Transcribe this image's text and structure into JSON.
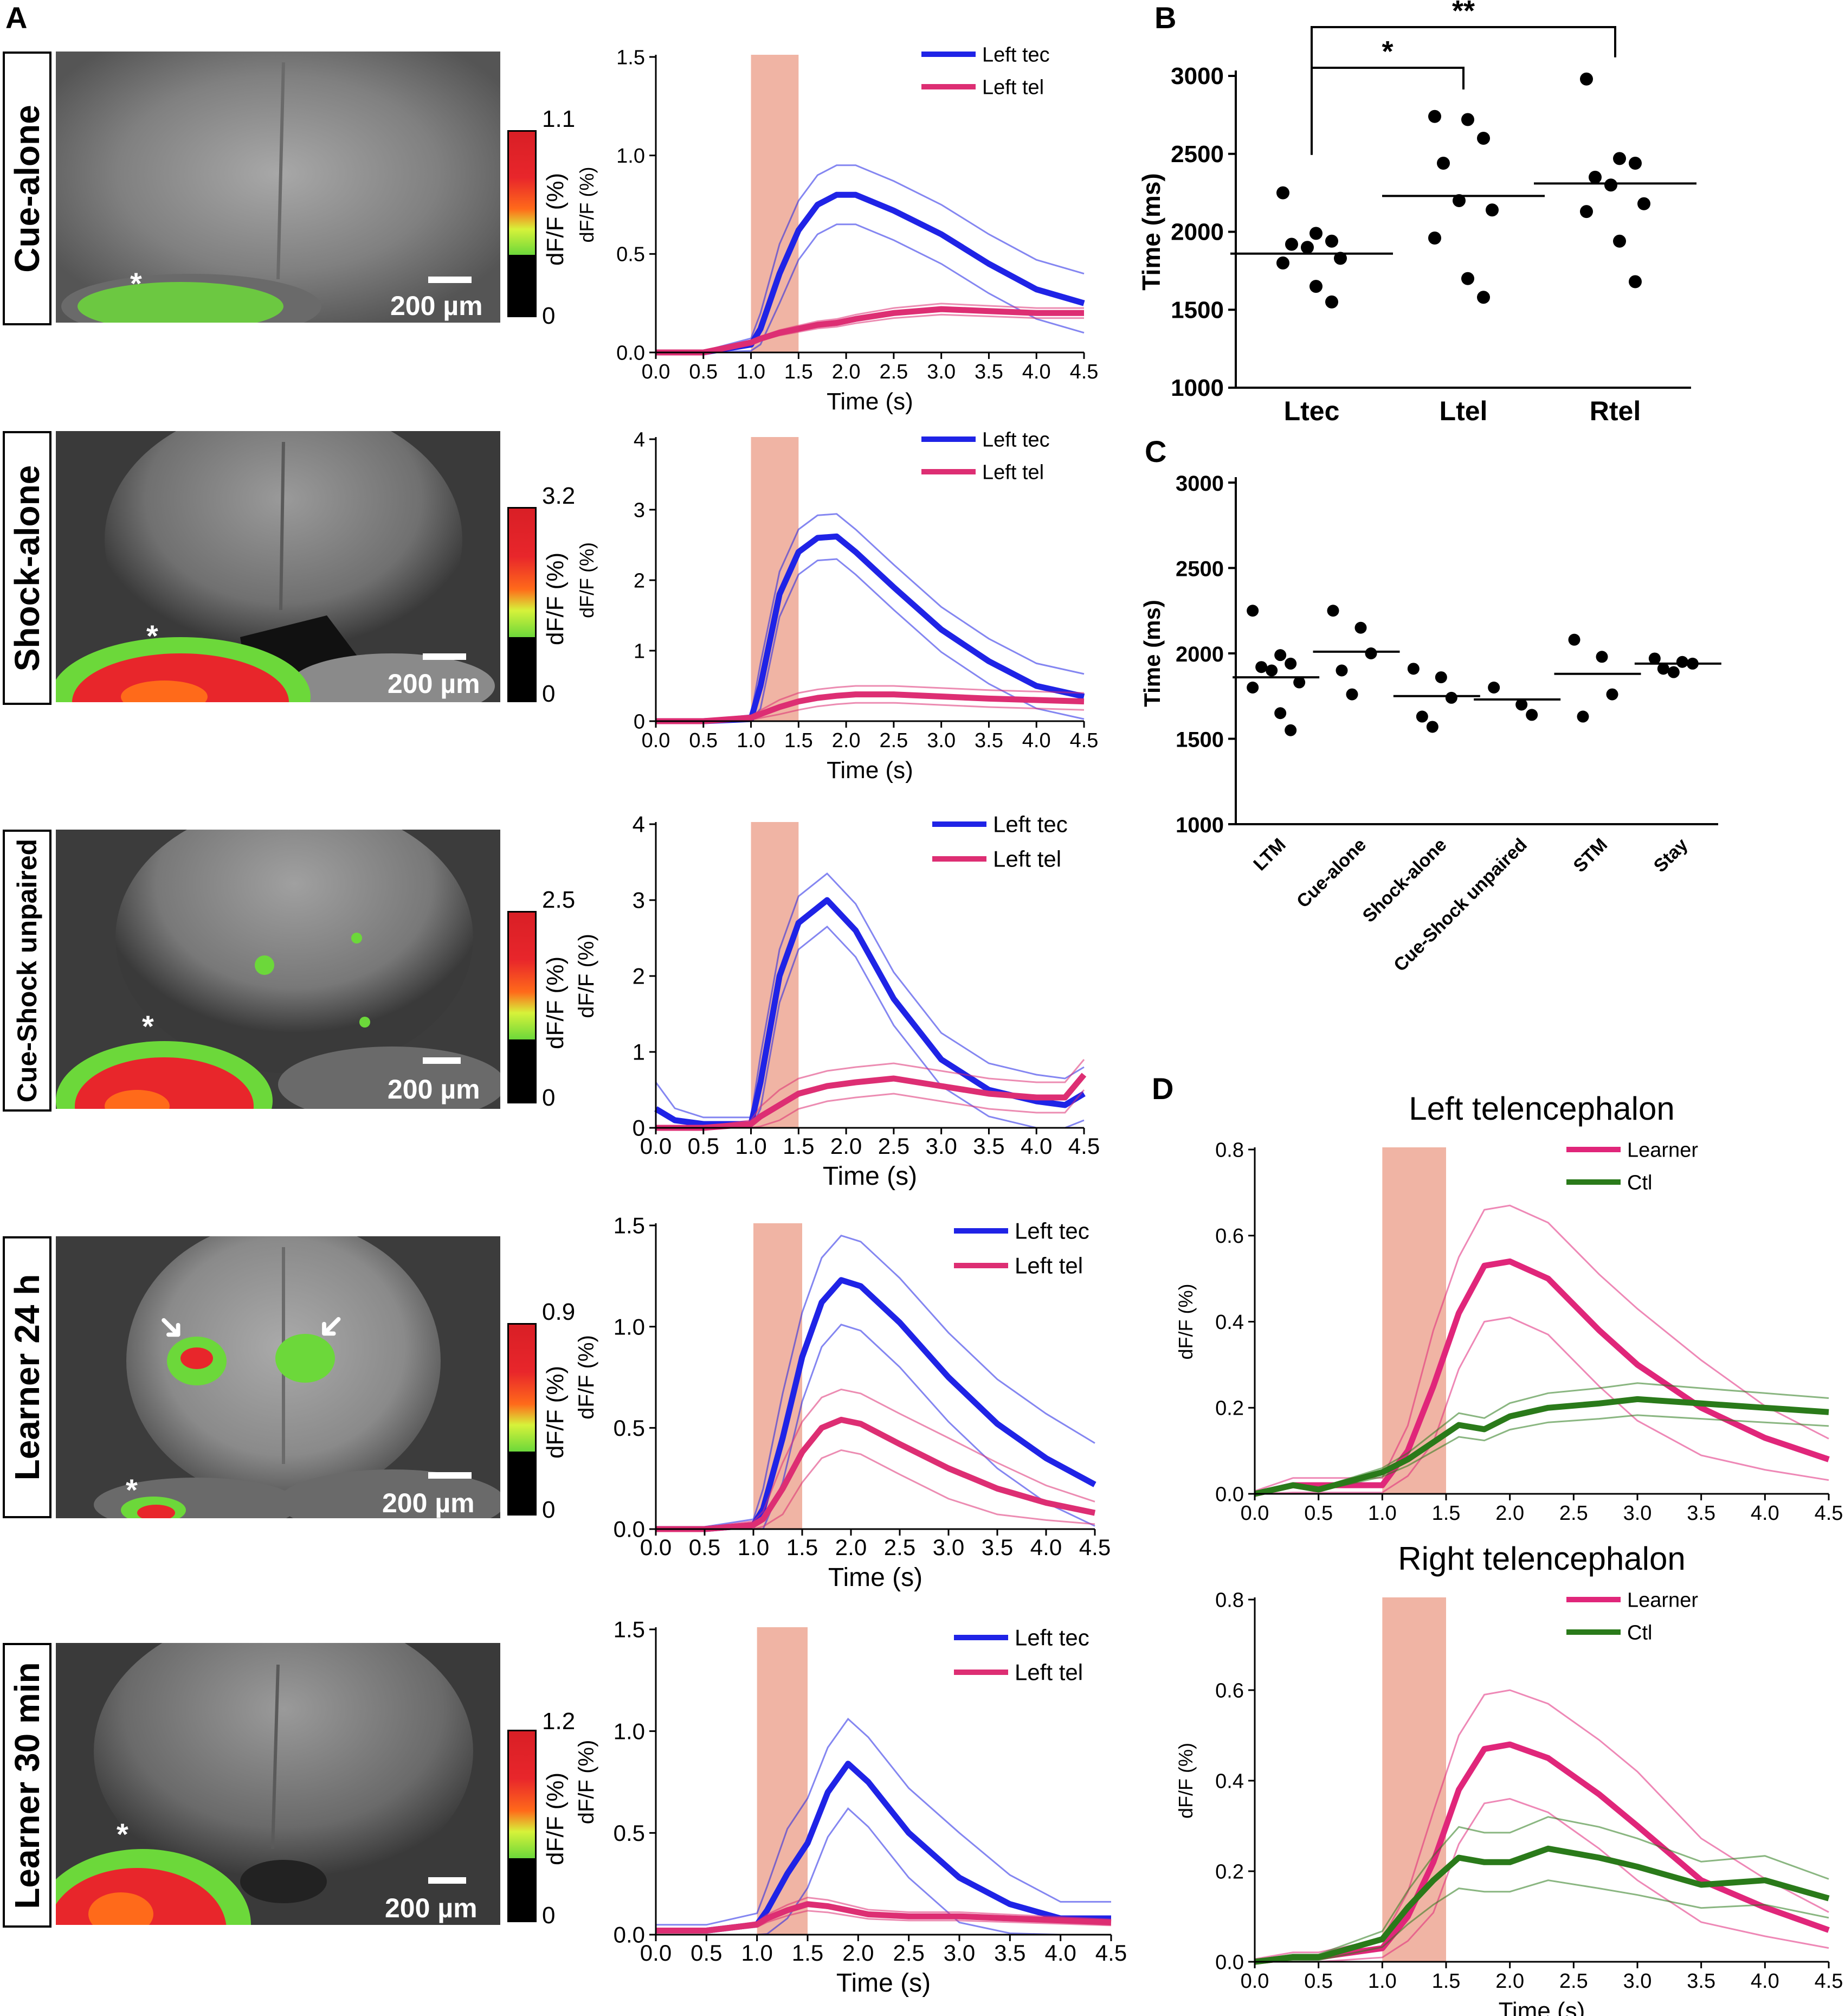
{
  "panel_letters": {
    "a": "A",
    "b": "B",
    "c": "C",
    "d": "D"
  },
  "scale_bar_label": "200 µm",
  "asterisk": "*",
  "arrow_glyph": "➜",
  "colors": {
    "left_tec": "#1f23e6",
    "left_tel": "#dd2e73",
    "learner": "#e0267a",
    "ctl": "#2a7a1a",
    "cue_window": "#f0b4a4",
    "colorbar_low": "#6cd83a",
    "colorbar_high": "#d91f26"
  },
  "rows": [
    {
      "condition": "Cue-alone",
      "colorbar_max": "1.1",
      "colorbar_min": "0",
      "colorbar_unit": "dF/F (%)"
    },
    {
      "condition": "Shock-alone",
      "colorbar_max": "3.2",
      "colorbar_min": "0",
      "colorbar_unit": "dF/F (%)"
    },
    {
      "condition": "Cue-Shock unpaired",
      "colorbar_max": "2.5",
      "colorbar_min": "0",
      "colorbar_unit": "dF/F (%)"
    },
    {
      "condition": "Learner 24 h",
      "colorbar_max": "0.9",
      "colorbar_min": "0",
      "colorbar_unit": "dF/F (%)"
    },
    {
      "condition": "Learner 30 min",
      "colorbar_max": "1.2",
      "colorbar_min": "0",
      "colorbar_unit": "dF/F (%)"
    }
  ],
  "chart_data": [
    {
      "id": "A1",
      "type": "line",
      "xlabel": "Time (s)",
      "ylabel": "dF/F (%)",
      "xlim": [
        0,
        4.5
      ],
      "ylim": [
        0,
        1.5
      ],
      "xticks": [
        "0.0",
        "0.5",
        "1.0",
        "1.5",
        "2.0",
        "2.5",
        "3.0",
        "3.5",
        "4.0",
        "4.5"
      ],
      "yticks": [
        "0.0",
        "0.5",
        "1.0",
        "1.5"
      ],
      "shaded": [
        1.0,
        1.5
      ],
      "x": [
        0.0,
        0.5,
        1.0,
        1.1,
        1.3,
        1.5,
        1.7,
        1.9,
        2.1,
        2.5,
        3.0,
        3.5,
        4.0,
        4.5
      ],
      "series": [
        {
          "name": "Left tec",
          "color": "#1f23e6",
          "values": [
            0.0,
            0.0,
            0.04,
            0.12,
            0.4,
            0.62,
            0.75,
            0.8,
            0.8,
            0.72,
            0.6,
            0.45,
            0.32,
            0.25
          ],
          "sem": 0.15
        },
        {
          "name": "Left tel",
          "color": "#dd2e73",
          "values": [
            0.0,
            0.0,
            0.05,
            0.07,
            0.1,
            0.12,
            0.14,
            0.15,
            0.17,
            0.2,
            0.22,
            0.21,
            0.2,
            0.2
          ],
          "sem": 0.03
        }
      ]
    },
    {
      "id": "A2",
      "type": "line",
      "xlabel": "Time (s)",
      "ylabel": "dF/F (%)",
      "xlim": [
        0,
        4.5
      ],
      "ylim": [
        0,
        4
      ],
      "xticks": [
        "0.0",
        "0.5",
        "1.0",
        "1.5",
        "2.0",
        "2.5",
        "3.0",
        "3.5",
        "4.0",
        "4.5"
      ],
      "yticks": [
        "0",
        "1",
        "2",
        "3",
        "4"
      ],
      "shaded": [
        1.0,
        1.5
      ],
      "x": [
        0.0,
        0.5,
        1.0,
        1.1,
        1.3,
        1.5,
        1.7,
        1.9,
        2.1,
        2.5,
        3.0,
        3.5,
        4.0,
        4.5
      ],
      "series": [
        {
          "name": "Left tec",
          "color": "#1f23e6",
          "values": [
            0.0,
            0.0,
            0.03,
            0.5,
            1.8,
            2.4,
            2.6,
            2.62,
            2.4,
            1.9,
            1.3,
            0.85,
            0.5,
            0.35
          ],
          "sem": 0.32
        },
        {
          "name": "Left tel",
          "color": "#dd2e73",
          "values": [
            0.0,
            0.0,
            0.05,
            0.1,
            0.2,
            0.28,
            0.33,
            0.36,
            0.38,
            0.38,
            0.35,
            0.32,
            0.3,
            0.28
          ],
          "sem": 0.12
        }
      ]
    },
    {
      "id": "A3",
      "type": "line",
      "xlabel": "Time (s)",
      "ylabel": "dF/F (%)",
      "xlim": [
        0,
        4.5
      ],
      "ylim": [
        0,
        4
      ],
      "xticks": [
        "0.0",
        "0.5",
        "1.0",
        "1.5",
        "2.0",
        "2.5",
        "3.0",
        "3.5",
        "4.0",
        "4.5"
      ],
      "yticks": [
        "0",
        "1",
        "2",
        "3",
        "4"
      ],
      "shaded": [
        1.0,
        1.5
      ],
      "x": [
        0.0,
        0.2,
        0.5,
        1.0,
        1.1,
        1.3,
        1.5,
        1.8,
        2.1,
        2.5,
        3.0,
        3.5,
        4.0,
        4.3,
        4.5
      ],
      "series": [
        {
          "name": "Left tec",
          "color": "#1f23e6",
          "values": [
            0.25,
            0.1,
            0.05,
            0.05,
            0.6,
            2.0,
            2.7,
            3.0,
            2.6,
            1.7,
            0.9,
            0.5,
            0.35,
            0.3,
            0.45
          ],
          "sem": 0.35
        },
        {
          "name": "Left tel",
          "color": "#dd2e73",
          "values": [
            0.0,
            0.0,
            0.0,
            0.05,
            0.15,
            0.3,
            0.45,
            0.55,
            0.6,
            0.65,
            0.55,
            0.45,
            0.4,
            0.4,
            0.7
          ],
          "sem": 0.2
        }
      ]
    },
    {
      "id": "A4",
      "type": "line",
      "xlabel": "Time (s)",
      "ylabel": "dF/F (%)",
      "xlim": [
        0,
        4.5
      ],
      "ylim": [
        0,
        1.5
      ],
      "xticks": [
        "0.0",
        "0.5",
        "1.0",
        "1.5",
        "2.0",
        "2.5",
        "3.0",
        "3.5",
        "4.0",
        "4.5"
      ],
      "yticks": [
        "0.0",
        "0.5",
        "1.0",
        "1.5"
      ],
      "shaded": [
        1.0,
        1.5
      ],
      "x": [
        0.0,
        0.5,
        1.0,
        1.1,
        1.3,
        1.5,
        1.7,
        1.9,
        2.1,
        2.5,
        3.0,
        3.5,
        4.0,
        4.5
      ],
      "series": [
        {
          "name": "Left tec",
          "color": "#1f23e6",
          "values": [
            0.0,
            0.0,
            0.02,
            0.1,
            0.45,
            0.85,
            1.12,
            1.23,
            1.2,
            1.02,
            0.75,
            0.52,
            0.35,
            0.22
          ],
          "sem": 0.22
        },
        {
          "name": "Left tel",
          "color": "#dd2e73",
          "values": [
            0.0,
            0.0,
            0.02,
            0.05,
            0.2,
            0.38,
            0.5,
            0.54,
            0.52,
            0.42,
            0.3,
            0.2,
            0.13,
            0.08
          ],
          "sem": 0.15
        }
      ]
    },
    {
      "id": "A5",
      "type": "line",
      "xlabel": "Time (s)",
      "ylabel": "dF/F (%)",
      "xlim": [
        0,
        4.5
      ],
      "ylim": [
        0,
        1.5
      ],
      "xticks": [
        "0.0",
        "0.5",
        "1.0",
        "1.5",
        "2.0",
        "2.5",
        "3.0",
        "3.5",
        "4.0",
        "4.5"
      ],
      "yticks": [
        "0.0",
        "0.5",
        "1.0",
        "1.5"
      ],
      "shaded": [
        1.0,
        1.5
      ],
      "x": [
        0.0,
        0.5,
        1.0,
        1.1,
        1.3,
        1.5,
        1.7,
        1.9,
        2.1,
        2.5,
        3.0,
        3.5,
        4.0,
        4.5
      ],
      "series": [
        {
          "name": "Left tec",
          "color": "#1f23e6",
          "values": [
            0.02,
            0.02,
            0.05,
            0.12,
            0.3,
            0.45,
            0.7,
            0.84,
            0.75,
            0.5,
            0.28,
            0.15,
            0.08,
            0.08
          ],
          "sem": 0.22
        },
        {
          "name": "Left tel",
          "color": "#dd2e73",
          "values": [
            0.02,
            0.02,
            0.05,
            0.08,
            0.12,
            0.15,
            0.14,
            0.12,
            0.1,
            0.09,
            0.09,
            0.08,
            0.07,
            0.06
          ],
          "sem": 0.05
        }
      ]
    },
    {
      "id": "B",
      "type": "scatter",
      "xlabel": "",
      "ylabel": "Time  (ms)",
      "ylim": [
        1000,
        3000
      ],
      "yticks": [
        "1000",
        "1500",
        "2000",
        "2500",
        "3000"
      ],
      "categories": [
        "Ltec",
        "Ltel",
        "Rtel"
      ],
      "points": [
        [
          2250,
          1990,
          1940,
          1920,
          1900,
          1830,
          1800,
          1650,
          1550
        ],
        [
          2740,
          2720,
          2600,
          2440,
          2200,
          2140,
          1960,
          1700,
          1580
        ],
        [
          2980,
          2470,
          2440,
          2350,
          2300,
          2180,
          2130,
          1940,
          1680
        ]
      ],
      "means": [
        1860,
        2230,
        2310
      ],
      "significance": [
        {
          "from": "Ltec",
          "to": "Ltel",
          "label": "*"
        },
        {
          "from": "Ltec",
          "to": "Rtel",
          "label": "**"
        }
      ]
    },
    {
      "id": "C",
      "type": "scatter",
      "xlabel": "",
      "ylabel": "Time  (ms)",
      "ylim": [
        1000,
        3000
      ],
      "yticks": [
        "1000",
        "1500",
        "2000",
        "2500",
        "3000"
      ],
      "categories": [
        "LTM",
        "Cue-alone",
        "Shock-alone",
        "Cue-Shock unpaired",
        "STM",
        "Stay"
      ],
      "points": [
        [
          2250,
          1990,
          1940,
          1920,
          1900,
          1830,
          1800,
          1650,
          1550
        ],
        [
          2250,
          2150,
          2000,
          1900,
          1760
        ],
        [
          1910,
          1860,
          1740,
          1630,
          1570
        ],
        [
          1800,
          1700,
          1640
        ],
        [
          2080,
          1980,
          1760,
          1630
        ],
        [
          1970,
          1950,
          1940,
          1910,
          1890
        ]
      ],
      "means": [
        1860,
        2010,
        1750,
        1730,
        1880,
        1940
      ]
    },
    {
      "id": "D1",
      "type": "line",
      "title": "Left telencephalon",
      "xlabel": "Time (s)",
      "ylabel": "dF/F (%)",
      "xlim": [
        0,
        4.5
      ],
      "ylim": [
        0,
        0.8
      ],
      "xticks": [
        "0.0",
        "0.5",
        "1.0",
        "1.5",
        "2.0",
        "2.5",
        "3.0",
        "3.5",
        "4.0",
        "4.5"
      ],
      "yticks": [
        "0.0",
        "0.2",
        "0.4",
        "0.6",
        "0.8"
      ],
      "shaded": [
        1.0,
        1.5
      ],
      "x": [
        0.0,
        0.3,
        0.5,
        1.0,
        1.2,
        1.4,
        1.6,
        1.8,
        2.0,
        2.3,
        2.7,
        3.0,
        3.5,
        4.0,
        4.5
      ],
      "series": [
        {
          "name": "Learner",
          "color": "#e0267a",
          "values": [
            0.0,
            0.02,
            0.02,
            0.02,
            0.1,
            0.25,
            0.42,
            0.53,
            0.54,
            0.5,
            0.38,
            0.3,
            0.2,
            0.13,
            0.08
          ],
          "sem": 0.13
        },
        {
          "name": "Ctl",
          "color": "#2a7a1a",
          "values": [
            0.0,
            0.02,
            0.01,
            0.05,
            0.08,
            0.12,
            0.16,
            0.15,
            0.18,
            0.2,
            0.21,
            0.22,
            0.21,
            0.2,
            0.19
          ],
          "sem": 0.04
        }
      ]
    },
    {
      "id": "D2",
      "type": "line",
      "title": "Right telencephalon",
      "xlabel": "Time (s)",
      "ylabel": "dF/F (%)",
      "xlim": [
        0,
        4.5
      ],
      "ylim": [
        0,
        0.8
      ],
      "xticks": [
        "0.0",
        "0.5",
        "1.0",
        "1.5",
        "2.0",
        "2.5",
        "3.0",
        "3.5",
        "4.0",
        "4.5"
      ],
      "yticks": [
        "0.0",
        "0.2",
        "0.4",
        "0.6",
        "0.8"
      ],
      "shaded": [
        1.0,
        1.5
      ],
      "x": [
        0.0,
        0.3,
        0.5,
        1.0,
        1.2,
        1.4,
        1.6,
        1.8,
        2.0,
        2.3,
        2.7,
        3.0,
        3.5,
        4.0,
        4.5
      ],
      "series": [
        {
          "name": "Learner",
          "color": "#e0267a",
          "values": [
            0.0,
            0.01,
            0.01,
            0.03,
            0.1,
            0.22,
            0.38,
            0.47,
            0.48,
            0.45,
            0.37,
            0.3,
            0.18,
            0.12,
            0.07
          ],
          "sem": 0.12
        },
        {
          "name": "Ctl",
          "color": "#2a7a1a",
          "values": [
            0.0,
            0.01,
            0.01,
            0.05,
            0.12,
            0.18,
            0.23,
            0.22,
            0.22,
            0.25,
            0.23,
            0.21,
            0.17,
            0.18,
            0.14
          ],
          "sem": 0.07
        }
      ]
    }
  ]
}
